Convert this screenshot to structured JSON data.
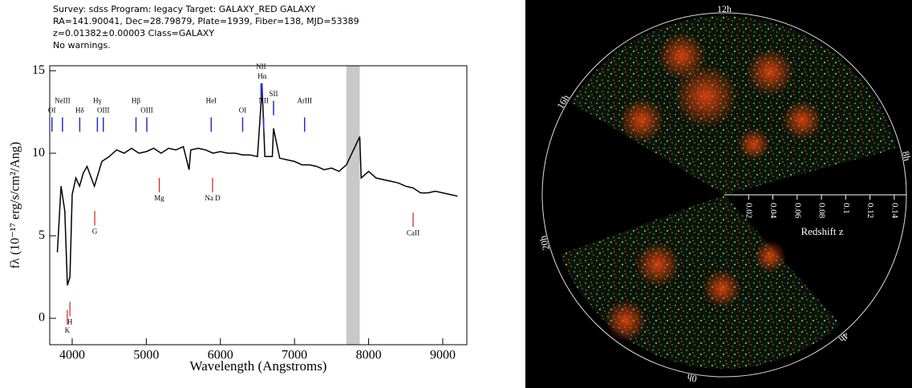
{
  "chart_data": [
    {
      "type": "line",
      "subtitle": [
        "Survey: sdss Program: legacy Target: GALAXY_RED GALAXY",
        "RA=141.90041, Dec=28.79879, Plate=1939, Fiber=138, MJD=53389",
        "z=0.01382±0.00003 Class=GALAXY",
        "No warnings."
      ],
      "x_label": "Wavelength (Angstroms)",
      "y_label": "fλ (10⁻¹⁷ erg/s/cm²/Ang)",
      "x": [
        3800,
        3850,
        3900,
        3935,
        3970,
        4000,
        4050,
        4100,
        4150,
        4200,
        4300,
        4400,
        4500,
        4600,
        4700,
        4800,
        4900,
        5000,
        5100,
        5200,
        5300,
        5400,
        5500,
        5577,
        5600,
        5700,
        5800,
        5900,
        6000,
        6100,
        6200,
        6300,
        6400,
        6500,
        6563,
        6600,
        6700,
        6717,
        6800,
        6900,
        7000,
        7100,
        7200,
        7300,
        7400,
        7500,
        7600,
        7700,
        7880,
        7900,
        8000,
        8100,
        8200,
        8300,
        8400,
        8500,
        8600,
        8700,
        8800,
        8900,
        9000,
        9100,
        9200
      ],
      "values": [
        4.0,
        8.0,
        6.5,
        2.0,
        2.5,
        7.5,
        8.5,
        8.0,
        8.8,
        9.2,
        8.0,
        9.5,
        9.8,
        10.2,
        10.0,
        10.3,
        10.0,
        10.1,
        10.3,
        10.0,
        10.3,
        10.2,
        10.4,
        9.0,
        10.2,
        10.3,
        10.2,
        10.0,
        10.1,
        10.0,
        10.0,
        9.9,
        9.9,
        9.8,
        14.0,
        9.8,
        9.8,
        11.5,
        9.7,
        9.6,
        9.5,
        9.3,
        9.3,
        9.2,
        9.0,
        9.1,
        8.9,
        9.3,
        11.0,
        8.5,
        8.9,
        8.5,
        8.4,
        8.3,
        8.2,
        8.0,
        7.9,
        7.6,
        7.6,
        7.7,
        7.6,
        7.5,
        7.4
      ],
      "color": "#000000",
      "shaded_region": [
        7700,
        7880
      ],
      "emission_lines": [
        {
          "label": "OI",
          "wavelength": 3727
        },
        {
          "label": "NeIII",
          "wavelength": 3869
        },
        {
          "label": "Hδ",
          "wavelength": 4102
        },
        {
          "label": "Hγ",
          "wavelength": 4340
        },
        {
          "label": "OIII",
          "wavelength": 4420
        },
        {
          "label": "Hβ",
          "wavelength": 4861
        },
        {
          "label": "OIII",
          "wavelength": 5007
        },
        {
          "label": "HeI",
          "wavelength": 5876
        },
        {
          "label": "OI",
          "wavelength": 6300
        },
        {
          "label": "NII",
          "wavelength": 6548
        },
        {
          "label": "Hα",
          "wavelength": 6563
        },
        {
          "label": "NII",
          "wavelength": 6583
        },
        {
          "label": "SII",
          "wavelength": 6717
        },
        {
          "label": "ArIII",
          "wavelength": 7136
        }
      ],
      "absorption_lines": [
        {
          "label": "K",
          "wavelength": 3934
        },
        {
          "label": "H",
          "wavelength": 3969
        },
        {
          "label": "G",
          "wavelength": 4304
        },
        {
          "label": "Mg",
          "wavelength": 5175
        },
        {
          "label": "Na D",
          "wavelength": 5894
        },
        {
          "label": "CaII",
          "wavelength": 8600
        }
      ],
      "xlim": [
        3697,
        9325
      ],
      "ylim": [
        -1.6,
        15.3
      ],
      "xticks": [
        4000,
        5000,
        6000,
        7000,
        8000,
        9000
      ],
      "yticks": [
        0,
        5,
        10,
        15
      ]
    },
    {
      "type": "wedge",
      "hour_labels": [
        "12h",
        "16h",
        "8h",
        "20h",
        "4h",
        "0h"
      ],
      "r_label": "Redshift z",
      "rlim": [
        0,
        0.15
      ],
      "rticks": [
        0.02,
        0.04,
        0.06,
        0.08,
        0.1,
        0.12,
        0.14
      ]
    }
  ]
}
